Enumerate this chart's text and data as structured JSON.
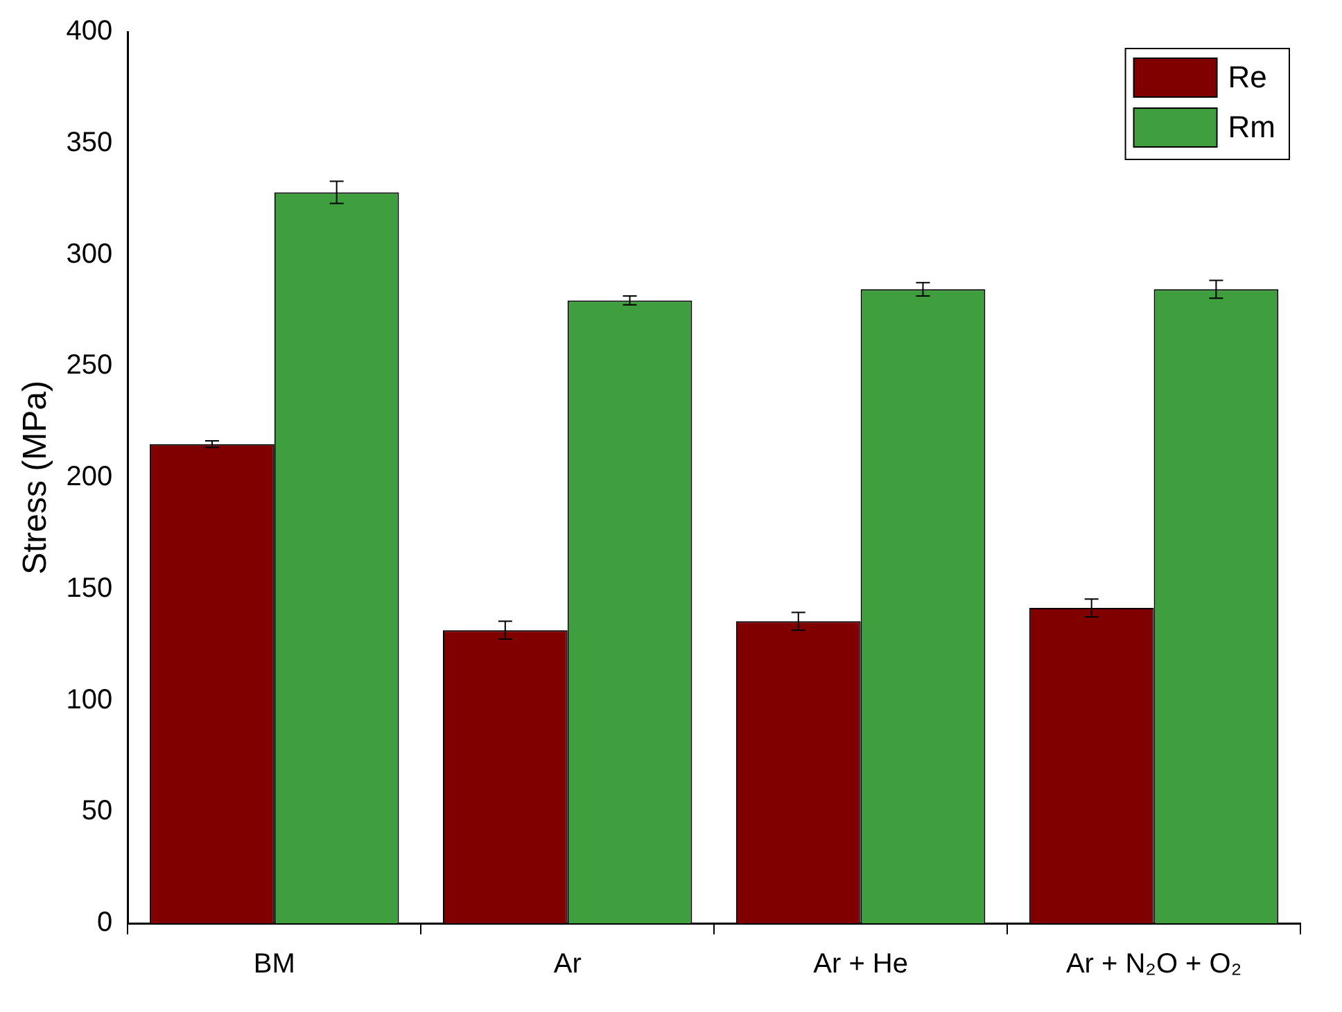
{
  "chart_data": {
    "type": "bar",
    "ylabel": "Stress (MPa)",
    "categories": [
      "BM",
      "Ar",
      "Ar + He",
      "Ar + N₂O + O₂"
    ],
    "series": [
      {
        "name": "Re",
        "color": "#800000",
        "values": [
          215,
          131.5,
          135.5,
          141.5
        ],
        "errors": [
          1.5,
          4,
          4,
          4
        ]
      },
      {
        "name": "Rm",
        "color": "#3f9f3f",
        "values": [
          328,
          279.5,
          284.5,
          284.5
        ],
        "errors": [
          5,
          2,
          3,
          4
        ]
      }
    ],
    "ylim": [
      0,
      400
    ],
    "yticks": [
      0,
      50,
      100,
      150,
      200,
      250,
      300,
      350,
      400
    ],
    "grid": false,
    "legend": "top right"
  }
}
